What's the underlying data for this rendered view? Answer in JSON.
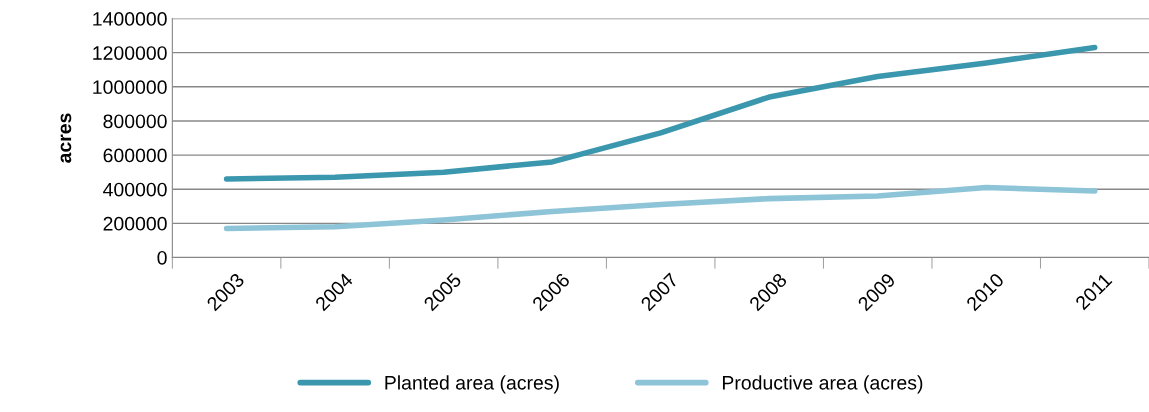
{
  "chart_data": {
    "type": "line",
    "ylabel": "acres",
    "categories": [
      "2003",
      "2004",
      "2005",
      "2006",
      "2007",
      "2008",
      "2009",
      "2010",
      "2011"
    ],
    "series": [
      {
        "name": "Planted area (acres)",
        "color": "#3b97ae",
        "values": [
          460000,
          470000,
          500000,
          560000,
          730000,
          940000,
          1060000,
          1140000,
          1230000
        ]
      },
      {
        "name": "Productive area (acres)",
        "color": "#8dc4d7",
        "values": [
          170000,
          180000,
          220000,
          270000,
          310000,
          345000,
          360000,
          410000,
          390000
        ]
      }
    ],
    "ylim": [
      0,
      1400000
    ],
    "yticks": [
      0,
      200000,
      400000,
      600000,
      800000,
      1000000,
      1200000,
      1400000
    ],
    "grid": "y",
    "legend": "bottom",
    "marker": "none",
    "line_style": "solid"
  }
}
